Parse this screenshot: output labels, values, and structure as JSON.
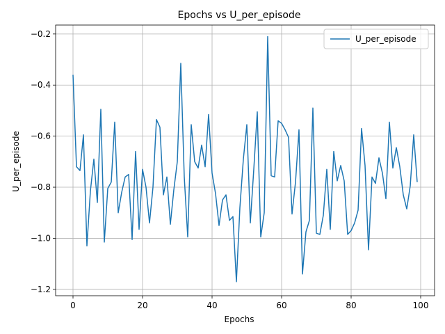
{
  "chart_data": {
    "type": "line",
    "title": "Epochs vs U_per_episode",
    "xlabel": "Epochs",
    "ylabel": "U_per_episode",
    "xlim": [
      -5,
      104
    ],
    "ylim": [
      -1.225,
      -0.165
    ],
    "xticks": [
      0,
      20,
      40,
      60,
      80,
      100
    ],
    "yticks": [
      -1.2,
      -1.0,
      -0.8,
      -0.6,
      -0.4,
      -0.2
    ],
    "xtick_labels": [
      "0",
      "20",
      "40",
      "60",
      "80",
      "100"
    ],
    "ytick_labels": [
      "−1.2",
      "−1.0",
      "−0.8",
      "−0.6",
      "−0.4",
      "−0.2"
    ],
    "grid": true,
    "legend_position": "top-right",
    "series": [
      {
        "name": "U_per_episode",
        "color": "#1f77b4",
        "x": [
          0,
          1,
          2,
          3,
          4,
          5,
          6,
          7,
          8,
          9,
          10,
          11,
          12,
          13,
          14,
          15,
          16,
          17,
          18,
          19,
          20,
          21,
          22,
          23,
          24,
          25,
          26,
          27,
          28,
          29,
          30,
          31,
          32,
          33,
          34,
          35,
          36,
          37,
          38,
          39,
          40,
          41,
          42,
          43,
          44,
          45,
          46,
          47,
          48,
          49,
          50,
          51,
          52,
          53,
          54,
          55,
          56,
          57,
          58,
          59,
          60,
          61,
          62,
          63,
          64,
          65,
          66,
          67,
          68,
          69,
          70,
          71,
          72,
          73,
          74,
          75,
          76,
          77,
          78,
          79,
          80,
          81,
          82,
          83,
          84,
          85,
          86,
          87,
          88,
          89,
          90,
          91,
          92,
          93,
          94,
          95,
          96,
          97,
          98,
          99
        ],
        "values": [
          -0.36,
          -0.72,
          -0.735,
          -0.595,
          -1.03,
          -0.815,
          -0.69,
          -0.86,
          -0.495,
          -1.015,
          -0.805,
          -0.78,
          -0.545,
          -0.9,
          -0.82,
          -0.76,
          -0.75,
          -1.005,
          -0.66,
          -0.965,
          -0.73,
          -0.8,
          -0.94,
          -0.8,
          -0.535,
          -0.565,
          -0.83,
          -0.76,
          -0.945,
          -0.81,
          -0.7,
          -0.315,
          -0.76,
          -0.995,
          -0.555,
          -0.7,
          -0.725,
          -0.635,
          -0.72,
          -0.515,
          -0.745,
          -0.825,
          -0.95,
          -0.85,
          -0.83,
          -0.93,
          -0.915,
          -1.17,
          -0.88,
          -0.69,
          -0.555,
          -0.94,
          -0.73,
          -0.505,
          -0.995,
          -0.9,
          -0.21,
          -0.755,
          -0.76,
          -0.54,
          -0.55,
          -0.575,
          -0.605,
          -0.905,
          -0.78,
          -0.575,
          -1.14,
          -0.975,
          -0.93,
          -0.49,
          -0.98,
          -0.985,
          -0.91,
          -0.73,
          -0.965,
          -0.66,
          -0.775,
          -0.715,
          -0.775,
          -0.985,
          -0.97,
          -0.94,
          -0.89,
          -0.57,
          -0.715,
          -1.045,
          -0.76,
          -0.785,
          -0.685,
          -0.745,
          -0.845,
          -0.545,
          -0.725,
          -0.645,
          -0.72,
          -0.83,
          -0.885,
          -0.795,
          -0.595,
          -0.78
        ]
      }
    ]
  }
}
